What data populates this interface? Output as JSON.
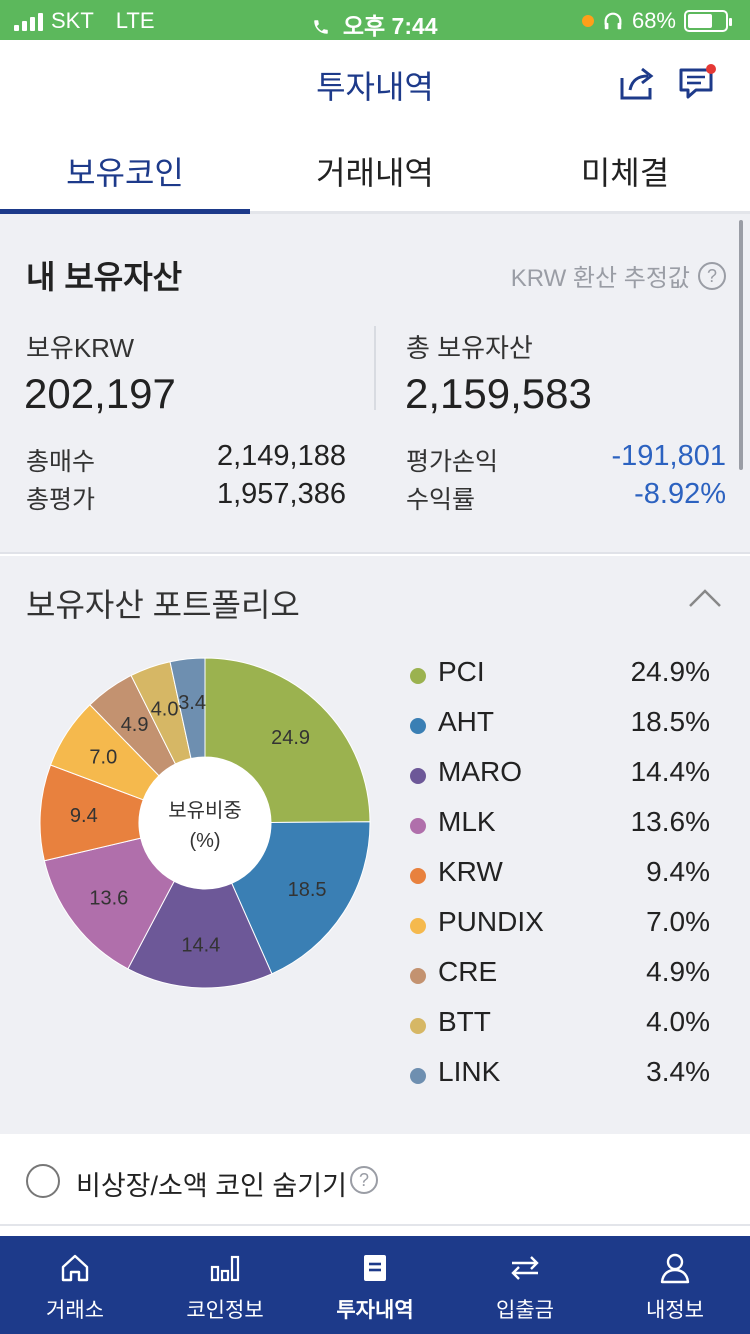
{
  "status_bar": {
    "carrier": "SKT",
    "network": "LTE",
    "time": "오후 7:44",
    "battery": "68%",
    "battery_level": 0.68
  },
  "header": {
    "title": "투자내역",
    "share_icon": "share-icon",
    "chat_icon": "chat-icon"
  },
  "tabs": [
    {
      "label": "보유코인",
      "active": true
    },
    {
      "label": "거래내역",
      "active": false
    },
    {
      "label": "미체결",
      "active": false
    }
  ],
  "my_assets": {
    "title": "내 보유자산",
    "note": "KRW 환산 추정값",
    "krw_label": "보유KRW",
    "krw_value": "202,197",
    "total_label": "총 보유자산",
    "total_value": "2,159,583",
    "buy_total_label": "총매수",
    "buy_total_value": "2,149,188",
    "eval_total_label": "총평가",
    "eval_total_value": "1,957,386",
    "pnl_label": "평가손익",
    "pnl_value": "-191,801",
    "return_label": "수익률",
    "return_value": "-8.92%",
    "negative_color": "#2c62c0"
  },
  "portfolio": {
    "title": "보유자산 포트폴리오",
    "center_label_1": "보유비중",
    "center_label_2": "(%)",
    "items": [
      {
        "name": "PCI",
        "percent": "24.9%",
        "value": 24.9,
        "label": "24.9",
        "color": "#9bb24f"
      },
      {
        "name": "AHT",
        "percent": "18.5%",
        "value": 18.5,
        "label": "18.5",
        "color": "#3a7fb4"
      },
      {
        "name": "MARO",
        "percent": "14.4%",
        "value": 14.4,
        "label": "14.4",
        "color": "#6d5898"
      },
      {
        "name": "MLK",
        "percent": "13.6%",
        "value": 13.6,
        "label": "13.6",
        "color": "#b06fab"
      },
      {
        "name": "KRW",
        "percent": "9.4%",
        "value": 9.4,
        "label": "9.4",
        "color": "#e8813e"
      },
      {
        "name": "PUNDIX",
        "percent": "7.0%",
        "value": 7.0,
        "label": "7.0",
        "color": "#f5b94d"
      },
      {
        "name": "CRE",
        "percent": "4.9%",
        "value": 4.9,
        "label": "4.9",
        "color": "#c39270"
      },
      {
        "name": "BTT",
        "percent": "4.0%",
        "value": 4.0,
        "label": "4.0",
        "color": "#d6b765"
      },
      {
        "name": "LINK",
        "percent": "3.4%",
        "value": 3.4,
        "label": "3.4",
        "color": "#6e8fb0"
      }
    ]
  },
  "hide_small": {
    "label": "비상장/소액 코인 숨기기",
    "checked": false
  },
  "bottom_nav": [
    {
      "label": "거래소",
      "icon": "home-icon",
      "active": false
    },
    {
      "label": "코인정보",
      "icon": "bar-chart-icon",
      "active": false
    },
    {
      "label": "투자내역",
      "icon": "document-icon",
      "active": true
    },
    {
      "label": "입출금",
      "icon": "transfer-icon",
      "active": false
    },
    {
      "label": "내정보",
      "icon": "user-icon",
      "active": false
    }
  ]
}
